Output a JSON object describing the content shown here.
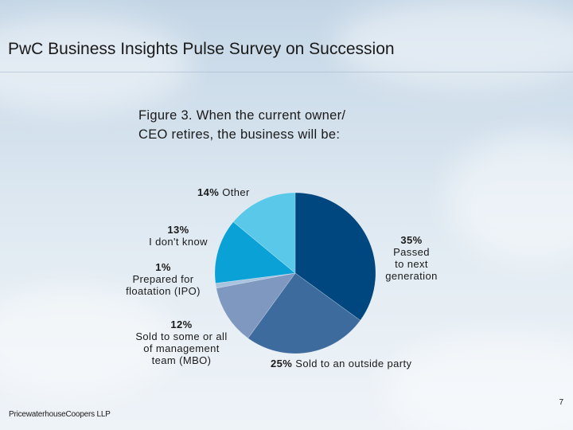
{
  "slide": {
    "title": "PwC Business Insights Pulse Survey on Succession",
    "footer_company": "PricewaterhouseCoopers LLP",
    "page_number": "7"
  },
  "chart_data": {
    "type": "pie",
    "title_lines": [
      "Figure 3. When the current owner/",
      "CEO retires, the business will be:"
    ],
    "start": "12 o'clock",
    "direction": "clockwise",
    "slices": [
      {
        "label_lines": [
          "Passed",
          "to next",
          "generation"
        ],
        "value": 35,
        "pct_text": "35%",
        "color": "#00467f"
      },
      {
        "label_lines": [
          "Sold to an outside party"
        ],
        "value": 25,
        "pct_text": "25%",
        "color": "#3e6b9d"
      },
      {
        "label_lines": [
          "Sold to some or all",
          "of management",
          "team (MBO)"
        ],
        "value": 12,
        "pct_text": "12%",
        "color": "#7f98c0"
      },
      {
        "label_lines": [
          "Prepared for",
          "floatation (IPO)"
        ],
        "value": 1,
        "pct_text": "1%",
        "color": "#aac4df"
      },
      {
        "label_lines": [
          "I don't know"
        ],
        "value": 13,
        "pct_text": "13%",
        "color": "#0aa1d6"
      },
      {
        "label_lines": [
          "Other"
        ],
        "value": 14,
        "pct_text": "14%",
        "color": "#5ac8e8"
      }
    ]
  }
}
